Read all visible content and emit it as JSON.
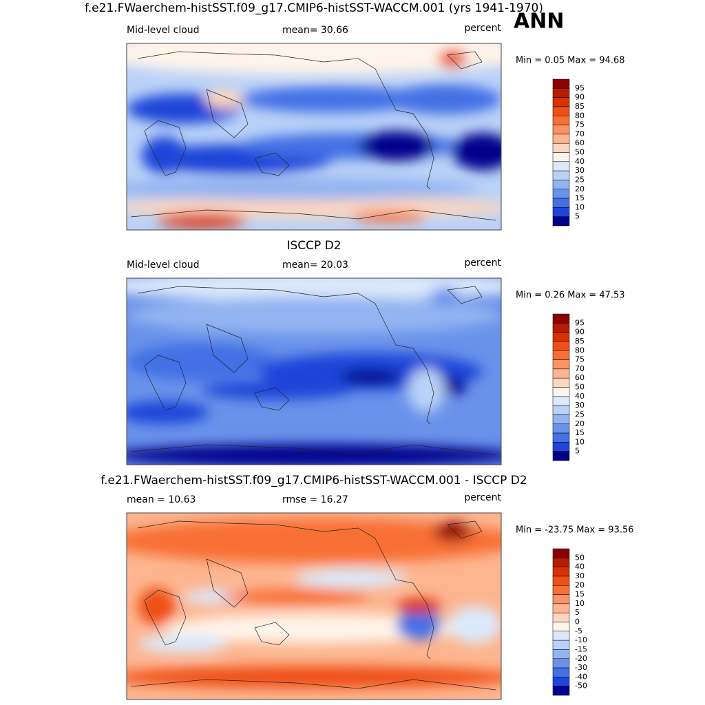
{
  "label": "ANN",
  "panels": [
    {
      "title": "f.e21.FWaerchem-histSST.f09_g17.CMIP6-histSST-WACCM.001 (yrs 1941-1970)",
      "left": "Mid-level cloud",
      "center": "mean=  30.66",
      "right": "percent",
      "range": "Min =   0.05 Max =  94.68",
      "colorbar": {
        "labels": [
          "95",
          "90",
          "85",
          "80",
          "75",
          "70",
          "60",
          "50",
          "40",
          "30",
          "25",
          "20",
          "15",
          "10",
          "5"
        ],
        "colors": [
          "#8b0000",
          "#b51c00",
          "#d83200",
          "#ef4f14",
          "#f86f34",
          "#fb9262",
          "#fdb590",
          "#fdd6bd",
          "#fff4ea",
          "#dbe9fb",
          "#b9d2f8",
          "#92b4f1",
          "#6a92ea",
          "#4270e5",
          "#1e44d8",
          "#00008b"
        ]
      }
    },
    {
      "title": "ISCCP D2",
      "left": "Mid-level cloud",
      "center": "mean=  20.03",
      "right": "percent",
      "range": "Min =   0.26 Max =  47.53",
      "colorbar": {
        "labels": [
          "95",
          "90",
          "85",
          "80",
          "75",
          "70",
          "60",
          "50",
          "40",
          "30",
          "25",
          "20",
          "15",
          "10",
          "5"
        ],
        "colors": [
          "#8b0000",
          "#b51c00",
          "#d83200",
          "#ef4f14",
          "#f86f34",
          "#fb9262",
          "#fdb590",
          "#fdd6bd",
          "#fff4ea",
          "#dbe9fb",
          "#b9d2f8",
          "#92b4f1",
          "#6a92ea",
          "#4270e5",
          "#1e44d8",
          "#00008b"
        ]
      }
    },
    {
      "title": "f.e21.FWaerchem-histSST.f09_g17.CMIP6-histSST-WACCM.001 - ISCCP D2",
      "left": "mean =  10.63",
      "center": "rmse =  16.27",
      "right": "percent",
      "range": "Min = -23.75 Max =  93.56",
      "colorbar": {
        "labels": [
          "50",
          "40",
          "30",
          "20",
          "15",
          "10",
          "5",
          "0",
          "-5",
          "-10",
          "-15",
          "-20",
          "-30",
          "-40",
          "-50"
        ],
        "colors": [
          "#8b0000",
          "#b51c00",
          "#d83200",
          "#ef4f14",
          "#f86f34",
          "#fb9262",
          "#fdb590",
          "#fdd6bd",
          "#fff4ea",
          "#dbe9fb",
          "#b9d2f8",
          "#92b4f1",
          "#6a92ea",
          "#4270e5",
          "#1e44d8",
          "#00008b"
        ]
      }
    }
  ]
}
